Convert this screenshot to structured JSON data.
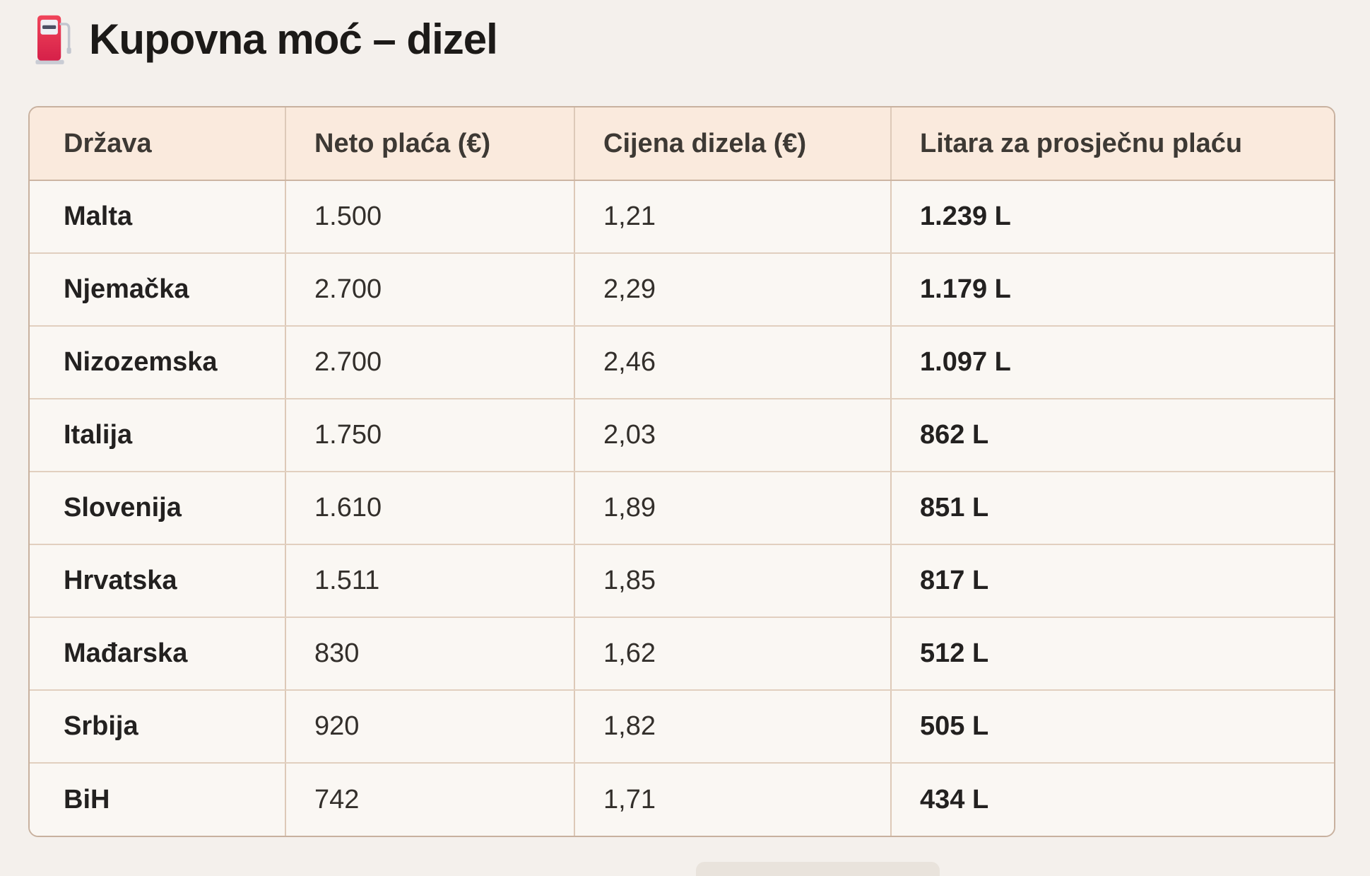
{
  "chart_data": {
    "type": "table",
    "title": "Kupovna moć – dizel",
    "columns": [
      "Država",
      "Neto plaća (€)",
      "Cijena dizela (€)",
      "Litara za prosječnu plaću"
    ],
    "rows": [
      {
        "country": "Malta",
        "net_salary": "1.500",
        "diesel_price": "1,21",
        "liters": "1.239 L"
      },
      {
        "country": "Njemačka",
        "net_salary": "2.700",
        "diesel_price": "2,29",
        "liters": "1.179 L"
      },
      {
        "country": "Nizozemska",
        "net_salary": "2.700",
        "diesel_price": "2,46",
        "liters": "1.097 L"
      },
      {
        "country": "Italija",
        "net_salary": "1.750",
        "diesel_price": "2,03",
        "liters": "862 L"
      },
      {
        "country": "Slovenija",
        "net_salary": "1.610",
        "diesel_price": "1,89",
        "liters": "851 L"
      },
      {
        "country": "Hrvatska",
        "net_salary": "1.511",
        "diesel_price": "1,85",
        "liters": "817 L"
      },
      {
        "country": "Mađarska",
        "net_salary": "830",
        "diesel_price": "1,62",
        "liters": "512 L"
      },
      {
        "country": "Srbija",
        "net_salary": "920",
        "diesel_price": "1,82",
        "liters": "505 L"
      },
      {
        "country": "BiH",
        "net_salary": "742",
        "diesel_price": "1,71",
        "liters": "434 L"
      }
    ],
    "numeric": {
      "categories": [
        "Malta",
        "Njemačka",
        "Nizozemska",
        "Italija",
        "Slovenija",
        "Hrvatska",
        "Mađarska",
        "Srbija",
        "BiH"
      ],
      "series": [
        {
          "name": "Neto plaća (€)",
          "values": [
            1500,
            2700,
            2700,
            1750,
            1610,
            1511,
            830,
            920,
            742
          ]
        },
        {
          "name": "Cijena dizela (€)",
          "values": [
            1.21,
            2.29,
            2.46,
            2.03,
            1.89,
            1.85,
            1.62,
            1.82,
            1.71
          ]
        },
        {
          "name": "Litara za prosječnu plaću",
          "values": [
            1239,
            1179,
            1097,
            862,
            851,
            817,
            512,
            505,
            434
          ]
        }
      ]
    },
    "layout_hints": {
      "grid": "full-borders",
      "header_row": true,
      "rounded_corners": true
    }
  },
  "page": {
    "icon": "fuel-pump",
    "colors": {
      "page_bg": "#f4f0ec",
      "header_bg": "#faeadd",
      "row_bg": "#faf7f3",
      "inner_border": "#ddc9b8",
      "outer_border": "#c8b19f",
      "title_text": "#1c1a18",
      "cell_text": "#332f2b",
      "pump_red": "#e63a50"
    }
  }
}
